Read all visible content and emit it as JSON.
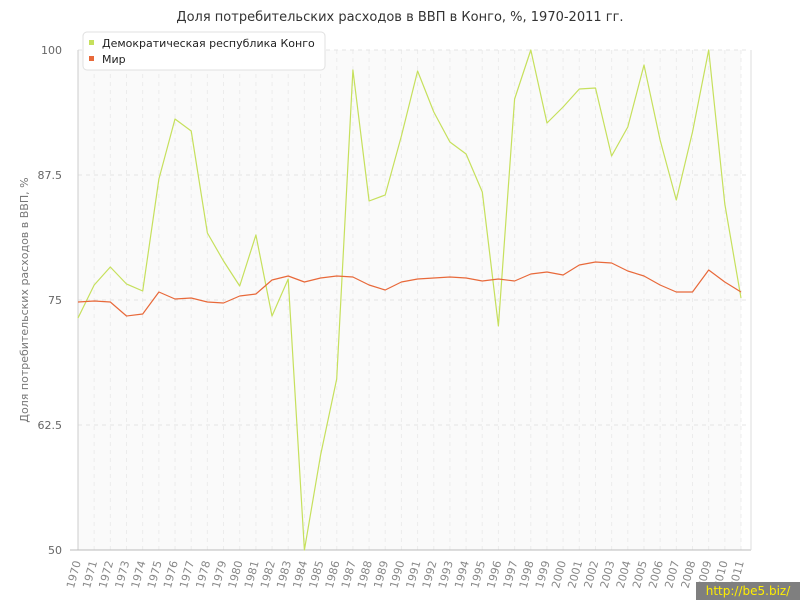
{
  "chart_data": {
    "type": "line",
    "title": "Доля потребительских расходов в ВВП в Конго, %, 1970-2011 гг.",
    "ylabel": "Доля потребительских расходов в ВВП, %",
    "ylim": [
      50,
      100
    ],
    "yticks": [
      "50",
      "62.5",
      "75",
      "87.5",
      "100"
    ],
    "x": [
      "1970",
      "1971",
      "1972",
      "1973",
      "1974",
      "1975",
      "1976",
      "1977",
      "1978",
      "1979",
      "1980",
      "1981",
      "1982",
      "1983",
      "1984",
      "1985",
      "1986",
      "1987",
      "1988",
      "1989",
      "1990",
      "1991",
      "1992",
      "1993",
      "1994",
      "1995",
      "1996",
      "1997",
      "1998",
      "1999",
      "2000",
      "2001",
      "2002",
      "2003",
      "2004",
      "2005",
      "2006",
      "2007",
      "2008",
      "2009",
      "2010",
      "2011"
    ],
    "legend_position": "top-left",
    "series": [
      {
        "name": "Демократическая республика Конго",
        "color": "#c6e05c",
        "values": [
          73.2,
          76.5,
          78.3,
          76.6,
          75.9,
          87.1,
          93.1,
          91.9,
          81.7,
          78.9,
          76.4,
          81.5,
          73.4,
          77.1,
          50.0,
          59.5,
          67.1,
          98.0,
          84.9,
          85.5,
          91.4,
          97.9,
          93.8,
          90.8,
          89.6,
          85.8,
          72.4,
          95.1,
          100.0,
          92.7,
          94.3,
          96.1,
          96.2,
          89.4,
          92.3,
          98.5,
          91.0,
          85.0,
          91.8,
          100.0,
          84.6,
          75.2
        ]
      },
      {
        "name": "Мир",
        "color": "#e8693a",
        "values": [
          74.8,
          74.9,
          74.8,
          73.4,
          73.6,
          75.8,
          75.1,
          75.2,
          74.8,
          74.7,
          75.4,
          75.6,
          77.0,
          77.4,
          76.8,
          77.2,
          77.4,
          77.3,
          76.5,
          76.0,
          76.8,
          77.1,
          77.2,
          77.3,
          77.2,
          76.9,
          77.1,
          76.9,
          77.6,
          77.8,
          77.5,
          78.5,
          78.8,
          78.7,
          77.9,
          77.4,
          76.5,
          75.8,
          75.8,
          78.0,
          76.8,
          75.8
        ]
      }
    ]
  },
  "watermark": "http://be5.biz/"
}
